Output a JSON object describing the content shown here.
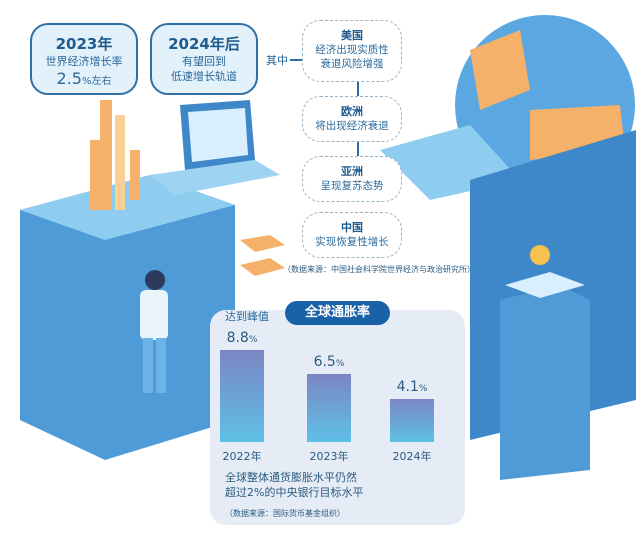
{
  "top_boxes": [
    {
      "year": "2023年",
      "line1": "世界经济增长率",
      "value": "2.5",
      "unit": "%左右"
    },
    {
      "year": "2024年后",
      "line1": "有望回到",
      "line2": "低速增长轨道"
    }
  ],
  "among_label": "其中",
  "regions": [
    {
      "name": "美国",
      "desc1": "经济出现实质性",
      "desc2": "衰退风险增强"
    },
    {
      "name": "欧洲",
      "desc1": "将出现经济衰退"
    },
    {
      "name": "亚洲",
      "desc1": "呈现复苏态势"
    },
    {
      "name": "中国",
      "desc1": "实现恢复性增长"
    }
  ],
  "source_top": "（数据来源：中国社会科学院世界经济与政治研究所）",
  "chart_title": "全球通胀率",
  "peak_label": "达到峰值",
  "note1": "全球整体通货膨胀水平仍然",
  "note2": "超过2%的中央银行目标水平",
  "source_bottom": "（数据来源：国际货币基金组织）",
  "colors": {
    "primary": "#1a62a8",
    "accent": "#f5b16a",
    "light_blue": "#6cc0ea"
  },
  "chart_data": {
    "type": "bar",
    "title": "全球通胀率",
    "categories": [
      "2022年",
      "2023年",
      "2024年"
    ],
    "values": [
      8.8,
      6.5,
      4.1
    ],
    "value_labels": [
      "8.8",
      "6.5",
      "4.1"
    ],
    "unit": "%"
  }
}
